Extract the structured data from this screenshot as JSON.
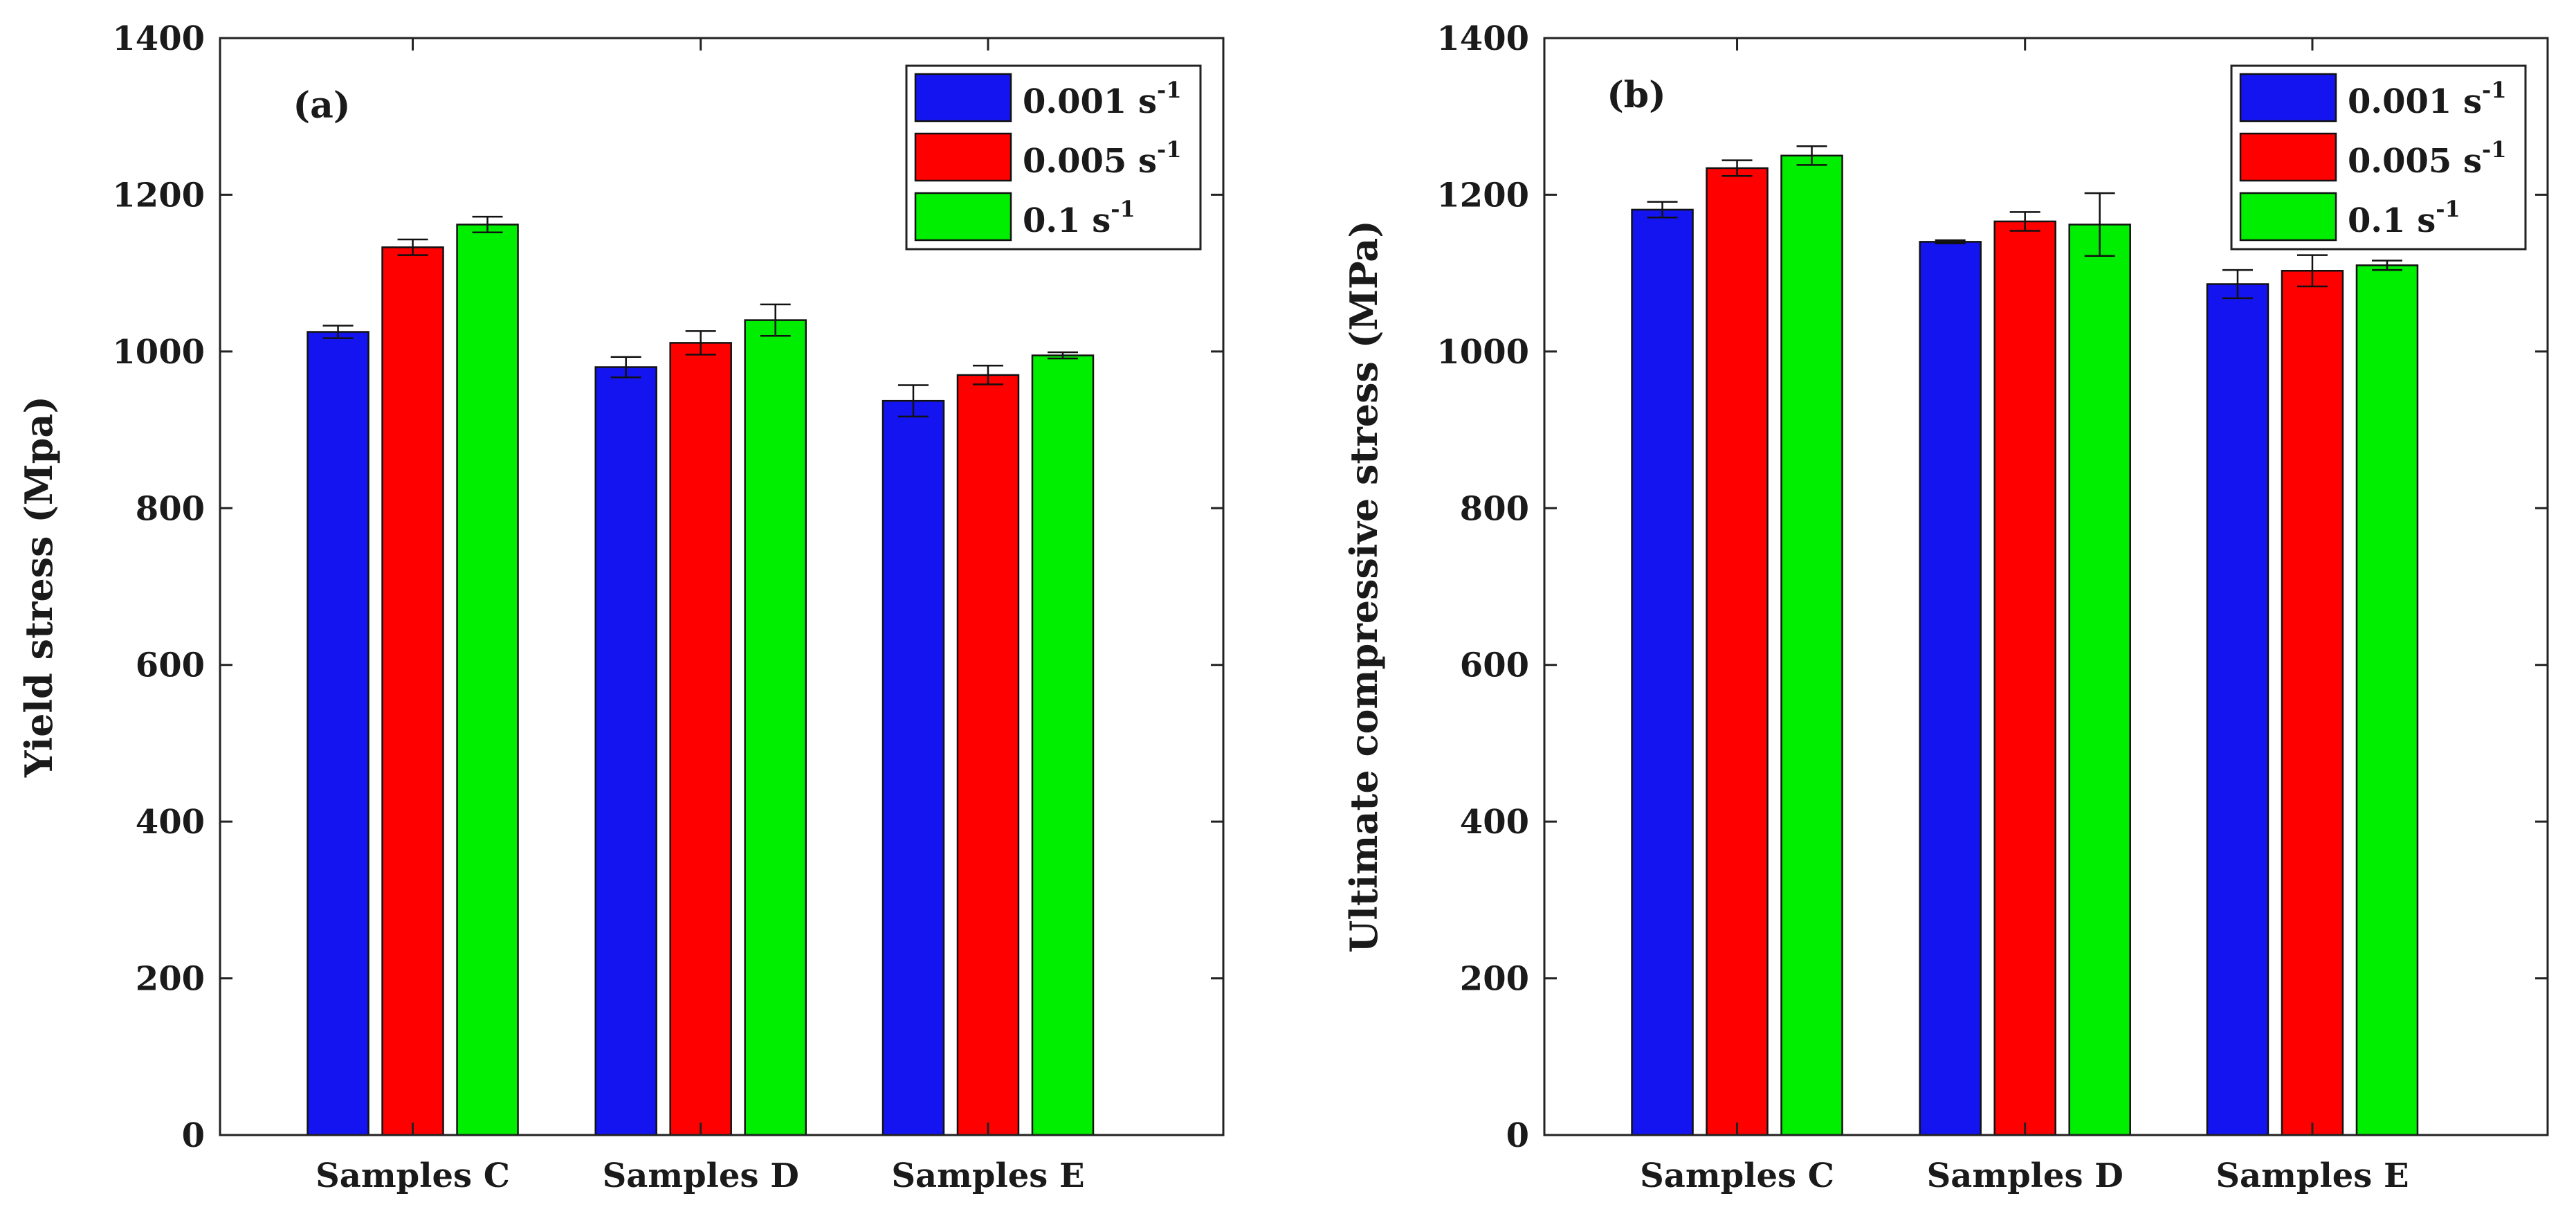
{
  "chart_data": [
    {
      "type": "bar",
      "panel_label": "(a)",
      "categories": [
        "Samples C",
        "Samples D",
        "Samples E"
      ],
      "series": [
        {
          "name": "0.001",
          "unit": "s",
          "exp": "-1",
          "color": "#1414f0",
          "values": [
            1025,
            980,
            937
          ],
          "errors": [
            8,
            13,
            20
          ]
        },
        {
          "name": "0.005",
          "unit": "s",
          "exp": "-1",
          "color": "#ff0000",
          "values": [
            1133,
            1011,
            970
          ],
          "errors": [
            10,
            15,
            12
          ]
        },
        {
          "name": "0.1",
          "unit": "s",
          "exp": "-1",
          "color": "#00ee00",
          "values": [
            1162,
            1040,
            995
          ],
          "errors": [
            10,
            20,
            4
          ]
        }
      ],
      "title": "",
      "xlabel": "",
      "ylabel": "Yield stress (Mpa)",
      "ylim": [
        0,
        1400
      ],
      "yticks": [
        0,
        200,
        400,
        600,
        800,
        1000,
        1200,
        1400
      ],
      "legend": "top-right"
    },
    {
      "type": "bar",
      "panel_label": "(b)",
      "categories": [
        "Samples C",
        "Samples D",
        "Samples E"
      ],
      "series": [
        {
          "name": "0.001",
          "unit": "s",
          "exp": "-1",
          "color": "#1414f0",
          "values": [
            1181,
            1140,
            1086
          ],
          "errors": [
            10,
            2,
            18
          ]
        },
        {
          "name": "0.005",
          "unit": "s",
          "exp": "-1",
          "color": "#ff0000",
          "values": [
            1234,
            1166,
            1103
          ],
          "errors": [
            10,
            12,
            20
          ]
        },
        {
          "name": "0.1",
          "unit": "s",
          "exp": "-1",
          "color": "#00ee00",
          "values": [
            1250,
            1162,
            1110
          ],
          "errors": [
            12,
            40,
            6
          ]
        }
      ],
      "title": "",
      "xlabel": "",
      "ylabel": "Ultimate compressive stress (MPa)",
      "ylim": [
        0,
        1400
      ],
      "yticks": [
        0,
        200,
        400,
        600,
        800,
        1000,
        1200,
        1400
      ],
      "legend": "top-right"
    }
  ]
}
